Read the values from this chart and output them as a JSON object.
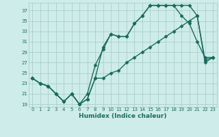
{
  "title": "",
  "xlabel": "Humidex (Indice chaleur)",
  "x_ticks": [
    0,
    1,
    2,
    3,
    4,
    5,
    6,
    7,
    8,
    9,
    10,
    11,
    12,
    13,
    14,
    15,
    16,
    17,
    18,
    19,
    20,
    21,
    22,
    23
  ],
  "y_ticks": [
    19,
    21,
    23,
    25,
    27,
    29,
    31,
    33,
    35,
    37
  ],
  "xlim": [
    -0.5,
    23.5
  ],
  "ylim": [
    18.5,
    38.5
  ],
  "bg_color": "#ceecea",
  "grid_color": "#aacfcc",
  "line_color": "#1a6b5e",
  "marker": "D",
  "markersize": 2.5,
  "linewidth": 1.0,
  "line1_x": [
    0,
    1,
    2,
    3,
    4,
    5,
    6,
    7,
    8,
    9,
    10,
    11,
    12,
    13,
    14,
    15,
    16,
    17,
    18,
    19,
    20,
    21,
    22,
    23
  ],
  "line1_y": [
    24,
    23,
    22.5,
    21,
    19.5,
    21,
    19,
    20,
    24,
    30,
    32.5,
    32,
    32,
    34.5,
    36,
    38,
    38,
    38,
    38,
    38,
    38,
    36,
    27.5,
    28
  ],
  "line2_x": [
    0,
    1,
    2,
    3,
    4,
    5,
    6,
    7,
    8,
    9,
    10,
    11,
    12,
    13,
    14,
    15,
    16,
    17,
    18,
    19,
    20,
    21,
    22,
    23
  ],
  "line2_y": [
    24,
    23,
    22.5,
    21,
    19.5,
    21,
    19,
    21,
    26.5,
    29.5,
    32.5,
    32,
    32,
    34.5,
    36,
    38,
    38,
    38,
    38,
    36,
    34.5,
    31,
    28,
    28
  ],
  "line3_x": [
    0,
    1,
    2,
    3,
    4,
    5,
    6,
    7,
    8,
    9,
    10,
    11,
    12,
    13,
    14,
    15,
    16,
    17,
    18,
    19,
    20,
    21,
    22,
    23
  ],
  "line3_y": [
    24,
    23,
    22.5,
    21,
    19.5,
    21,
    19,
    20,
    24,
    24,
    25,
    25.5,
    27,
    28,
    29,
    30,
    31,
    32,
    33,
    34,
    35,
    36,
    27,
    28
  ]
}
